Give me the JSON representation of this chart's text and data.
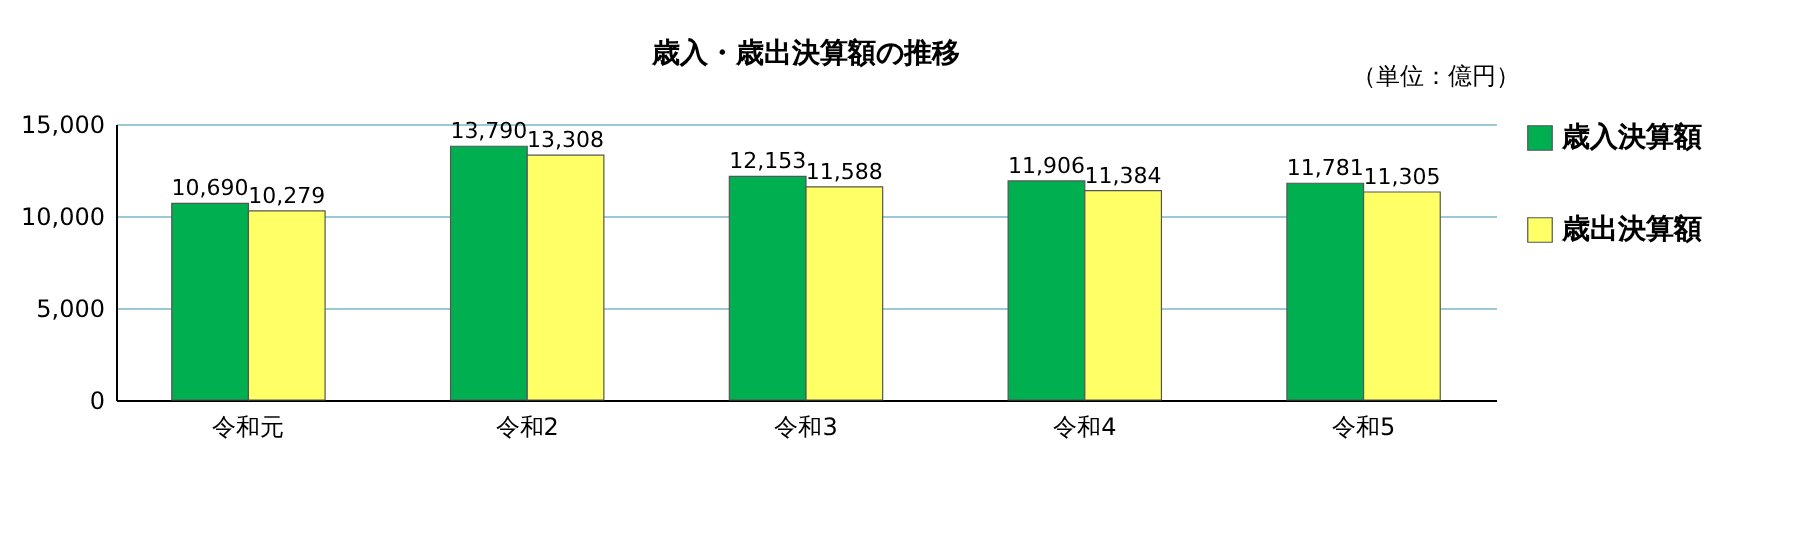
{
  "chart_data": {
    "type": "bar",
    "title": "歳入・歳出決算額の推移",
    "annotations": [
      "（単位：億円）"
    ],
    "categories": [
      "令和元",
      "令和2",
      "令和3",
      "令和4",
      "令和5"
    ],
    "series": [
      {
        "name": "歳入決算額",
        "color": "#00b050",
        "values": [
          10690,
          13790,
          12153,
          11906,
          11781
        ],
        "value_labels": [
          "10,690",
          "13,790",
          "12,153",
          "11,906",
          "11,781"
        ]
      },
      {
        "name": "歳出決算額",
        "color": "#ffff66",
        "values": [
          10279,
          13308,
          11588,
          11384,
          11305
        ],
        "value_labels": [
          "10,279",
          "13,308",
          "11,588",
          "11,384",
          "11,305"
        ]
      }
    ],
    "ylim": [
      0,
      15000
    ],
    "yticks": [
      0,
      {
        "value": 5000,
        "label": "5,000"
      },
      {
        "value": 10000,
        "label": "10,000"
      },
      {
        "value": 15000,
        "label": "15,000"
      }
    ],
    "grid": "y",
    "legend": "right"
  }
}
